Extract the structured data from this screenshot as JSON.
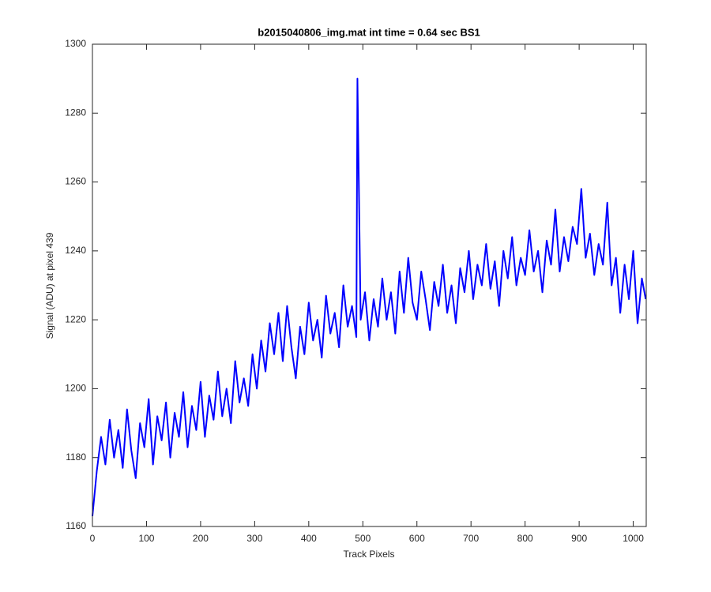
{
  "chart_data": {
    "type": "line",
    "title": "b2015040806_img.mat int time = 0.64 sec   BS1",
    "x_label": "Track Pixels",
    "y_label": "Signal (ADU) at pixel 439",
    "xlim": [
      0,
      1024
    ],
    "ylim": [
      1160,
      1300
    ],
    "xticks": [
      0,
      100,
      200,
      300,
      400,
      500,
      600,
      700,
      800,
      900,
      1000
    ],
    "yticks": [
      1160,
      1180,
      1200,
      1220,
      1240,
      1260,
      1280,
      1300
    ],
    "x": [
      0,
      8,
      16,
      24,
      32,
      40,
      48,
      56,
      64,
      72,
      80,
      88,
      96,
      104,
      112,
      120,
      128,
      136,
      144,
      152,
      160,
      168,
      176,
      184,
      192,
      200,
      208,
      216,
      224,
      232,
      240,
      248,
      256,
      264,
      272,
      280,
      288,
      296,
      304,
      312,
      320,
      328,
      336,
      344,
      352,
      360,
      368,
      376,
      384,
      392,
      400,
      408,
      416,
      424,
      432,
      440,
      448,
      456,
      464,
      472,
      480,
      488,
      490,
      496,
      504,
      512,
      520,
      528,
      536,
      544,
      552,
      560,
      568,
      576,
      584,
      592,
      600,
      608,
      616,
      624,
      632,
      640,
      648,
      656,
      664,
      672,
      680,
      688,
      696,
      704,
      712,
      720,
      728,
      736,
      744,
      752,
      760,
      768,
      776,
      784,
      792,
      800,
      808,
      816,
      824,
      832,
      840,
      848,
      856,
      864,
      872,
      880,
      888,
      896,
      904,
      912,
      920,
      928,
      936,
      944,
      952,
      960,
      968,
      976,
      984,
      992,
      1000,
      1008,
      1016,
      1023
    ],
    "series": [
      {
        "color": "#0000ff",
        "values": [
          1163,
          1176,
          1186,
          1178,
          1191,
          1180,
          1188,
          1177,
          1194,
          1182,
          1174,
          1190,
          1183,
          1197,
          1178,
          1192,
          1185,
          1196,
          1180,
          1193,
          1186,
          1199,
          1183,
          1195,
          1188,
          1202,
          1186,
          1198,
          1191,
          1205,
          1192,
          1200,
          1190,
          1208,
          1196,
          1203,
          1195,
          1210,
          1200,
          1214,
          1205,
          1219,
          1210,
          1222,
          1208,
          1224,
          1212,
          1203,
          1218,
          1210,
          1225,
          1214,
          1220,
          1209,
          1227,
          1216,
          1222,
          1212,
          1230,
          1218,
          1224,
          1215,
          1290,
          1220,
          1228,
          1214,
          1226,
          1218,
          1232,
          1220,
          1228,
          1216,
          1234,
          1222,
          1238,
          1225,
          1220,
          1234,
          1226,
          1217,
          1231,
          1224,
          1236,
          1222,
          1230,
          1219,
          1235,
          1228,
          1240,
          1226,
          1236,
          1230,
          1242,
          1229,
          1237,
          1224,
          1240,
          1232,
          1244,
          1230,
          1238,
          1233,
          1246,
          1234,
          1240,
          1228,
          1243,
          1236,
          1252,
          1234,
          1244,
          1237,
          1247,
          1242,
          1258,
          1238,
          1245,
          1233,
          1242,
          1236,
          1254,
          1230,
          1238,
          1222,
          1236,
          1226,
          1240,
          1219,
          1232,
          1226
        ]
      }
    ]
  }
}
